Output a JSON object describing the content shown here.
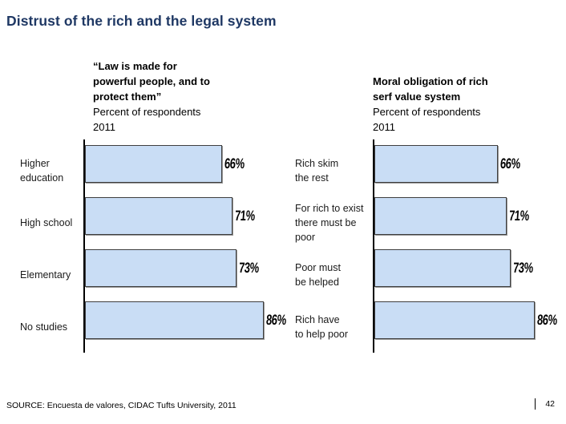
{
  "slide": {
    "title": "Distrust of the rich and the legal system",
    "source": "SOURCE: Encuesta de valores, CIDAC Tufts University, 2011",
    "page_number": "42"
  },
  "colors": {
    "title": "#1f3864",
    "bar_fill": "#c9ddf5",
    "bar_border": "#3f3f3f",
    "axis": "#000000"
  },
  "chart_data": [
    {
      "type": "bar",
      "orientation": "horizontal",
      "title": "“Law is made for\npowerful people, and to\nprotect them”",
      "subtitle": "Percent of respondents\n2011",
      "categories": [
        "Higher\neducation",
        "High school",
        "Elementary",
        "No studies"
      ],
      "values": [
        66,
        71,
        73,
        86
      ],
      "labels": [
        "66%",
        "71%",
        "73%",
        "86%"
      ],
      "xlim": [
        0,
        100
      ],
      "grid": false,
      "legend": false
    },
    {
      "type": "bar",
      "orientation": "horizontal",
      "title": "Moral obligation of rich\nserf value system",
      "subtitle": "Percent of respondents\n2011",
      "categories": [
        "Rich skim\nthe rest",
        "For rich to exist\nthere must be\npoor",
        "Poor must\nbe helped",
        "Rich have\nto help poor"
      ],
      "values": [
        66,
        71,
        73,
        86
      ],
      "labels": [
        "66%",
        "71%",
        "73%",
        "86%"
      ],
      "xlim": [
        0,
        100
      ],
      "grid": false,
      "legend": false
    }
  ]
}
